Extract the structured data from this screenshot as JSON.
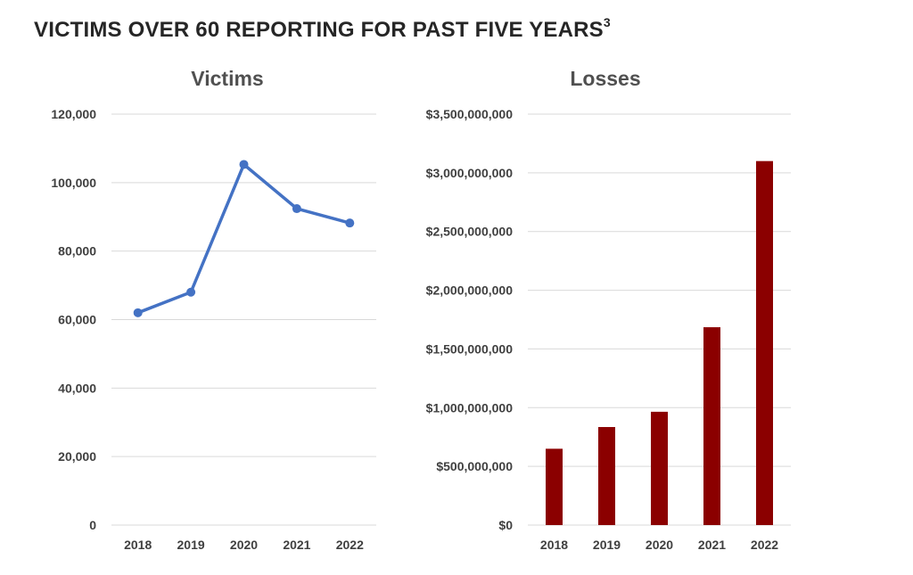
{
  "page": {
    "title": "VICTIMS OVER 60 REPORTING FOR PAST FIVE YEARS",
    "title_footnote": "3"
  },
  "chart_data": [
    {
      "type": "line",
      "title": "Victims",
      "categories": [
        "2018",
        "2019",
        "2020",
        "2021",
        "2022"
      ],
      "values": [
        62000,
        68000,
        105300,
        92400,
        88200
      ],
      "ylim": [
        0,
        120000
      ],
      "yticks": [
        0,
        20000,
        40000,
        60000,
        80000,
        100000,
        120000
      ],
      "ytick_labels": [
        "0",
        "20,000",
        "40,000",
        "60,000",
        "80,000",
        "100,000",
        "120,000"
      ],
      "xlabel": "",
      "ylabel": "",
      "grid": true,
      "color": "#4472c4"
    },
    {
      "type": "bar",
      "title": "Losses",
      "categories": [
        "2018",
        "2019",
        "2020",
        "2021",
        "2022"
      ],
      "values": [
        650000000,
        835000000,
        965000000,
        1685000000,
        3100000000
      ],
      "ylim": [
        0,
        3500000000
      ],
      "yticks": [
        0,
        500000000,
        1000000000,
        1500000000,
        2000000000,
        2500000000,
        3000000000,
        3500000000
      ],
      "ytick_labels": [
        "$0",
        "$500,000,000",
        "$1,000,000,000",
        "$1,500,000,000",
        "$2,000,000,000",
        "$2,500,000,000",
        "$3,000,000,000",
        "$3,500,000,000"
      ],
      "xlabel": "",
      "ylabel": "",
      "grid": true,
      "color": "#8b0000"
    }
  ]
}
